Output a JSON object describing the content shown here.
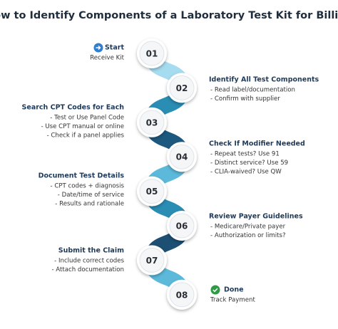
{
  "title": "How to Identify Components of a Laboratory Test Kit for Billing",
  "steps": [
    {
      "number": "01",
      "title": "Start",
      "items": [
        "Receive Kit"
      ]
    },
    {
      "number": "02",
      "title": "Identify All Test Components",
      "items": [
        "- Read label/documentation",
        "- Confirm with supplier"
      ]
    },
    {
      "number": "03",
      "title": "Search CPT Codes for Each",
      "items": [
        "- Test or Use Panel Code",
        "- Use CPT manual or online",
        "- Check if a panel applies"
      ]
    },
    {
      "number": "04",
      "title": "Check If Modifier Needed",
      "items": [
        "- Repeat tests? Use 91",
        "- Distinct service? Use 59",
        "- CLIA-waived? Use QW"
      ]
    },
    {
      "number": "05",
      "title": "Document Test Details",
      "items": [
        "- CPT codes + diagnosis",
        "- Date/time of service",
        "- Results and rationale"
      ]
    },
    {
      "number": "06",
      "title": "Review Payer Guidelines",
      "items": [
        "- Medicare/Private payer",
        "- Authorization or limits?"
      ]
    },
    {
      "number": "07",
      "title": "Submit the Claim",
      "items": [
        "- Include correct codes",
        "- Attach documentation"
      ]
    },
    {
      "number": "08",
      "title": "Done",
      "items": [
        "Track Payment"
      ]
    }
  ]
}
